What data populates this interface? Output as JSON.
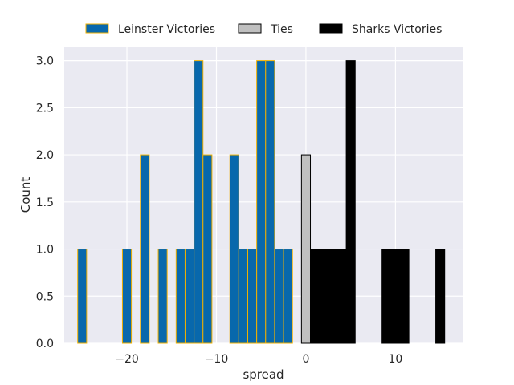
{
  "chart_data": {
    "type": "bar",
    "xlabel": "spread",
    "ylabel": "Count",
    "xlim": [
      -27,
      17.5
    ],
    "ylim": [
      0,
      3.15
    ],
    "x_ticks": [
      -20,
      -10,
      0,
      10
    ],
    "x_tick_labels": [
      "−20",
      "−10",
      "0",
      "10"
    ],
    "y_ticks": [
      0,
      0.5,
      1,
      1.5,
      2,
      2.5,
      3
    ],
    "y_tick_labels": [
      "0.0",
      "0.5",
      "1.0",
      "1.5",
      "2.0",
      "2.5",
      "3.0"
    ],
    "grid": true,
    "legend_position": "top",
    "bar_width": 1,
    "series": [
      {
        "name": "Leinster Victories",
        "color": "#0868ac",
        "edge_color": "#f0b000",
        "x": [
          -25,
          -20,
          -18,
          -16,
          -14,
          -13,
          -12,
          -11,
          -8,
          -7,
          -6,
          -5,
          -4,
          -3,
          -2
        ],
        "values": [
          1,
          1,
          2,
          1,
          1,
          1,
          3,
          2,
          2,
          1,
          1,
          3,
          3,
          1,
          1
        ]
      },
      {
        "name": "Ties",
        "color": "#c0c0c0",
        "edge_color": "#000000",
        "x": [
          0
        ],
        "values": [
          2
        ]
      },
      {
        "name": "Sharks Victories",
        "color": "#000000",
        "edge_color": "#000000",
        "x": [
          1,
          2,
          3,
          4,
          5,
          9,
          10,
          11,
          15
        ],
        "values": [
          1,
          1,
          1,
          1,
          3,
          1,
          1,
          1,
          1
        ]
      }
    ]
  }
}
